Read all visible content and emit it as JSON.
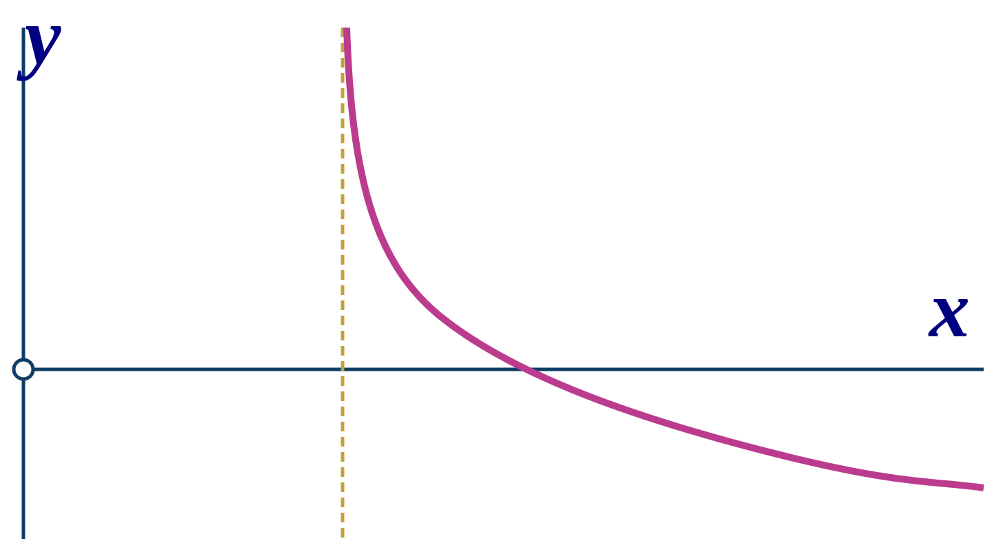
{
  "labels": {
    "y": "y",
    "x": "x"
  }
}
